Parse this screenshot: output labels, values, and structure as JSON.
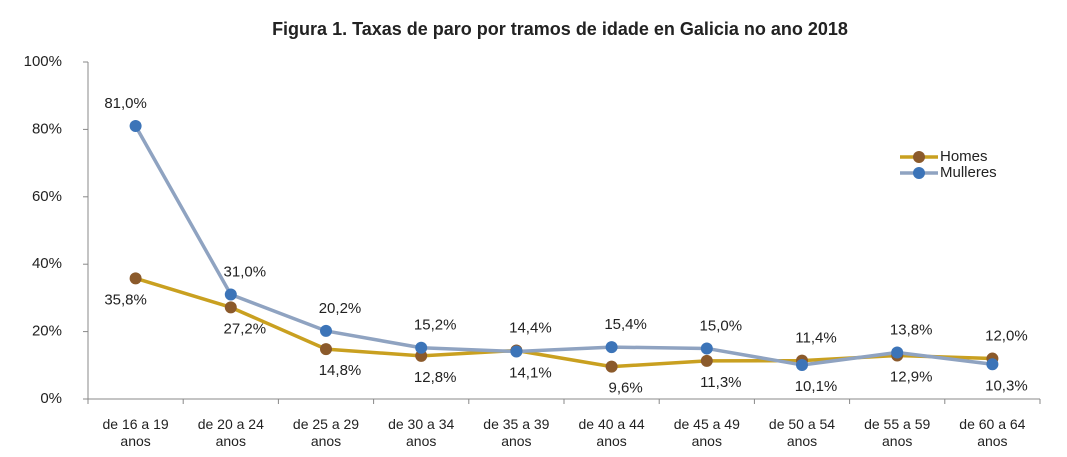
{
  "chart_data": {
    "type": "line",
    "title": "Figura 1. Taxas de paro por tramos de idade en Galicia no ano 2018",
    "categories": [
      "de 16 a 19 anos",
      "de 20 a 24 anos",
      "de 25 a 29 anos",
      "de 30 a 34 anos",
      "de 35 a 39 anos",
      "de 40 a 44 anos",
      "de 45 a 49 anos",
      "de 50 a 54 anos",
      "de 55 a 59 anos",
      "de 60 a 64 anos"
    ],
    "series": [
      {
        "name": "Homes",
        "color": "#c9a020",
        "marker_color": "#8b5a2b",
        "values": [
          35.8,
          27.2,
          14.8,
          12.8,
          14.4,
          9.6,
          11.3,
          11.4,
          12.9,
          12.0
        ],
        "value_labels": [
          "35,8%",
          "27,2%",
          "14,8%",
          "12,8%",
          "14,4%",
          "9,6%",
          "11,3%",
          "11,4%",
          "12,9%",
          "12,0%"
        ]
      },
      {
        "name": "Mulleres",
        "color": "#8fa3c1",
        "marker_color": "#3c74b8",
        "values": [
          81.0,
          31.0,
          20.2,
          15.2,
          14.1,
          15.4,
          15.0,
          10.1,
          13.8,
          10.3
        ],
        "value_labels": [
          "81,0%",
          "31,0%",
          "20,2%",
          "15,2%",
          "14,1%",
          "15,4%",
          "15,0%",
          "10,1%",
          "13,8%",
          "10,3%"
        ]
      }
    ],
    "ylim": [
      0,
      100
    ],
    "yticks": [
      {
        "value": 0,
        "label": "0%"
      },
      {
        "value": 20,
        "label": "20%"
      },
      {
        "value": 40,
        "label": "40%"
      },
      {
        "value": 60,
        "label": "60%"
      },
      {
        "value": 80,
        "label": "80%"
      },
      {
        "value": 100,
        "label": "100%"
      }
    ],
    "legend": "right"
  }
}
